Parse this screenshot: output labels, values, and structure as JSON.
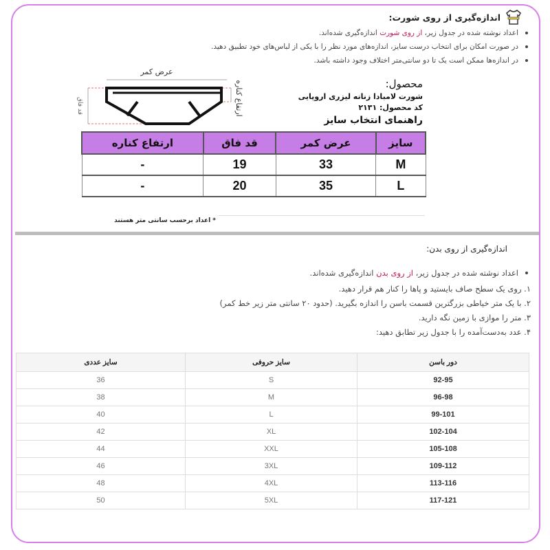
{
  "section1": {
    "title": "اندازه‌گیری از روی شورت:",
    "bullets": [
      {
        "pre": "اعداد نوشته شده در جدول زیر، ",
        "hl": "از روی شورت",
        "post": " اندازه‌گیری شده‌اند."
      },
      {
        "pre": "در صورت امکان برای انتخاب درست سایز، اندازه‌های مورد نظر را با یکی از لباس‌های خود تطبیق دهید.",
        "hl": "",
        "post": ""
      },
      {
        "pre": "در اندازه‌ها ممکن است یک تا دو سانتی‌متر اختلاف وجود داشته باشد.",
        "hl": "",
        "post": ""
      }
    ]
  },
  "diagram": {
    "waist_label": "عرض کمر",
    "rise_label": "قد فاق",
    "side_label": "ارتفاع کناره"
  },
  "product": {
    "label": "محصول:",
    "name": "شورت لامبادا زنانه لیزری اروپایی",
    "code": "کد محصول: ۲۱۳۱",
    "guide": "راهنمای انتخاب سایز"
  },
  "product_table": {
    "headers": [
      "سایز",
      "عرض کمر",
      "قد فاق",
      "ارتفاع کناره"
    ],
    "rows": [
      [
        "M",
        "33",
        "19",
        "-"
      ],
      [
        "L",
        "35",
        "20",
        "-"
      ]
    ]
  },
  "note": "اعداد برحسب سانتی متر هستند",
  "section2": {
    "title": "اندازه‌گیری از روی بدن:",
    "bullet": {
      "pre": "اعداد نوشته شده در جدول زیر، ",
      "hl": "از روی بدن",
      "post": " اندازه‌گیری شده‌اند."
    },
    "steps": [
      "۱. روی یک سطح صاف بایستید و پاها را کنار هم قرار دهید.",
      "۲. با یک متر خیاطی بزرگترین قسمت باسن را اندازه بگیرید. (حدود ۲۰ سانتی متر زیر خط کمر)",
      "۳. متر را موازی با زمین نگه دارید.",
      "۴. عدد به‌دست‌آمده را با جدول زیر تطابق دهید:"
    ]
  },
  "body_table": {
    "headers": [
      "دور باسن",
      "سایز حروفی",
      "سایز عددی"
    ],
    "rows": [
      [
        "92-95",
        "S",
        "36"
      ],
      [
        "96-98",
        "M",
        "38"
      ],
      [
        "99-101",
        "L",
        "40"
      ],
      [
        "102-104",
        "XL",
        "42"
      ],
      [
        "105-108",
        "XXL",
        "44"
      ],
      [
        "109-112",
        "3XL",
        "46"
      ],
      [
        "113-116",
        "4XL",
        "48"
      ],
      [
        "117-121",
        "5XL",
        "50"
      ]
    ]
  },
  "colors": {
    "frame": "#d87ee8",
    "table_header": "#c77de6",
    "highlight": "#c2185b"
  }
}
